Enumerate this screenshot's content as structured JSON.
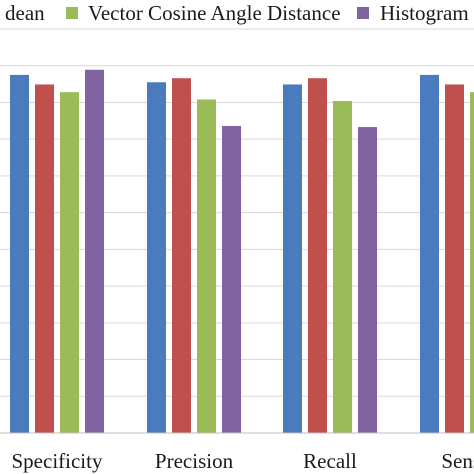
{
  "chart_data": {
    "type": "bar",
    "title": "",
    "xlabel": "",
    "ylabel": "",
    "categories": [
      "Specificity",
      "Precision",
      "Recall",
      "Sensit"
    ],
    "series": [
      {
        "name": "dean",
        "color": "#4a7bbf",
        "values": [
          0.975,
          0.955,
          0.949,
          0.975
        ]
      },
      {
        "name": "",
        "color": "#c0504d",
        "values": [
          0.949,
          0.966,
          0.966,
          0.949
        ]
      },
      {
        "name": "Vector Cosine Angle Distance",
        "color": "#9bbb59",
        "values": [
          0.928,
          0.908,
          0.904,
          0.928
        ]
      },
      {
        "name": "Histogram",
        "color": "#8064a2",
        "values": [
          0.989,
          0.836,
          0.833,
          null
        ]
      }
    ],
    "ylim": [
      0,
      1.1
    ],
    "grid": true,
    "legend_position": "top"
  }
}
